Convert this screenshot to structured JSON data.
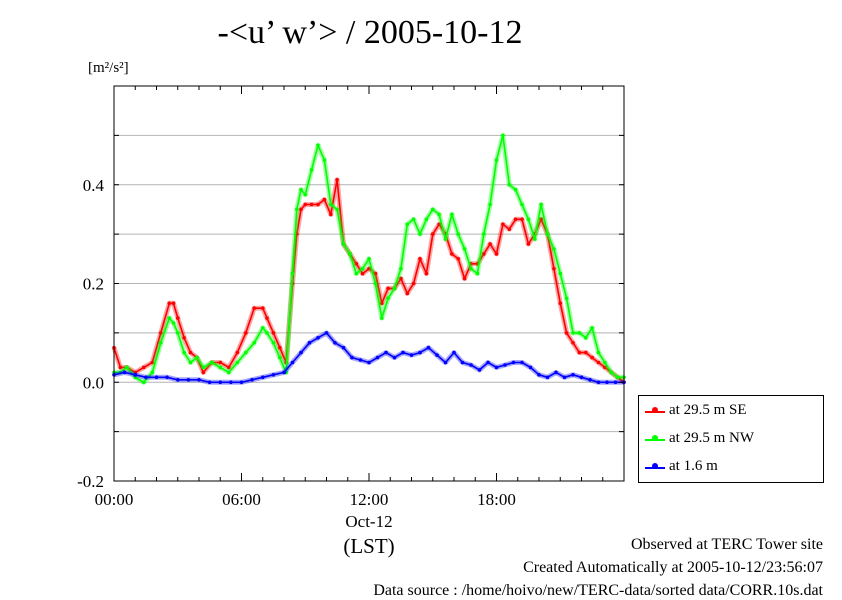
{
  "title": "-<u’ w’> / 2005-10-12",
  "unit_label": "[m²/s²]",
  "footer": {
    "line1": "Observed at TERC Tower site",
    "line2": "Created Automatically at 2005-10-12/23:56:07",
    "line3": "Data source : /home/hoivo/new/TERC-data/sorted  data/CORR.10s.dat"
  },
  "chart_data": {
    "type": "line",
    "title": "-<u’ w’> / 2005-10-12",
    "xlabel": "(LST)",
    "ylabel": "[m²/s²]",
    "x_unit": "hours (LST)",
    "xlim": [
      0,
      24
    ],
    "ylim": [
      -0.2,
      0.6
    ],
    "xticks": [
      {
        "value": 0,
        "label": "00:00"
      },
      {
        "value": 6,
        "label": "06:00"
      },
      {
        "value": 12,
        "label": "12:00"
      },
      {
        "value": 18,
        "label": "18:00"
      }
    ],
    "x_date_label": "Oct-12",
    "yticks": [
      {
        "value": -0.2,
        "label": "-0.2"
      },
      {
        "value": 0.0,
        "label": "0.0"
      },
      {
        "value": 0.2,
        "label": "0.2"
      },
      {
        "value": 0.4,
        "label": "0.4"
      }
    ],
    "grid": true,
    "legend_position": "right-bottom",
    "series": [
      {
        "name": "at 29.5 m SE",
        "color": "#ff0000",
        "x": [
          0.0,
          0.3,
          0.6,
          1.0,
          1.4,
          1.8,
          2.2,
          2.6,
          2.8,
          3.0,
          3.3,
          3.6,
          3.9,
          4.2,
          4.6,
          5.0,
          5.4,
          5.8,
          6.2,
          6.6,
          7.0,
          7.2,
          7.5,
          7.8,
          8.1,
          8.4,
          8.6,
          8.8,
          9.0,
          9.3,
          9.6,
          9.9,
          10.2,
          10.5,
          10.8,
          11.1,
          11.4,
          11.7,
          12.0,
          12.3,
          12.6,
          12.9,
          13.2,
          13.5,
          13.8,
          14.1,
          14.4,
          14.7,
          15.0,
          15.3,
          15.6,
          15.9,
          16.2,
          16.5,
          16.8,
          17.1,
          17.4,
          17.7,
          18.0,
          18.3,
          18.6,
          18.9,
          19.2,
          19.5,
          19.8,
          20.1,
          20.4,
          20.7,
          21.0,
          21.3,
          21.6,
          21.9,
          22.2,
          22.5,
          22.8,
          23.1,
          23.4,
          23.7,
          24.0
        ],
        "y": [
          0.07,
          0.03,
          0.03,
          0.02,
          0.03,
          0.04,
          0.1,
          0.16,
          0.16,
          0.13,
          0.09,
          0.06,
          0.05,
          0.02,
          0.04,
          0.04,
          0.03,
          0.06,
          0.1,
          0.15,
          0.15,
          0.13,
          0.1,
          0.07,
          0.04,
          0.2,
          0.3,
          0.35,
          0.36,
          0.36,
          0.36,
          0.37,
          0.34,
          0.41,
          0.28,
          0.26,
          0.24,
          0.22,
          0.23,
          0.22,
          0.16,
          0.19,
          0.19,
          0.21,
          0.18,
          0.2,
          0.25,
          0.22,
          0.3,
          0.32,
          0.3,
          0.26,
          0.25,
          0.21,
          0.24,
          0.24,
          0.26,
          0.28,
          0.26,
          0.32,
          0.31,
          0.33,
          0.33,
          0.28,
          0.3,
          0.33,
          0.3,
          0.23,
          0.16,
          0.1,
          0.08,
          0.06,
          0.06,
          0.05,
          0.04,
          0.03,
          0.02,
          0.01,
          0.0
        ]
      },
      {
        "name": "at 29.5 m NW",
        "color": "#00ff00",
        "x": [
          0.0,
          0.3,
          0.6,
          1.0,
          1.4,
          1.8,
          2.2,
          2.6,
          2.8,
          3.0,
          3.3,
          3.6,
          3.9,
          4.2,
          4.6,
          5.0,
          5.4,
          5.8,
          6.2,
          6.6,
          7.0,
          7.2,
          7.5,
          7.8,
          8.1,
          8.4,
          8.6,
          8.8,
          9.0,
          9.3,
          9.6,
          9.9,
          10.2,
          10.5,
          10.8,
          11.1,
          11.4,
          11.7,
          12.0,
          12.3,
          12.6,
          12.9,
          13.2,
          13.5,
          13.8,
          14.1,
          14.4,
          14.7,
          15.0,
          15.3,
          15.6,
          15.9,
          16.2,
          16.5,
          16.8,
          17.1,
          17.4,
          17.7,
          18.0,
          18.3,
          18.6,
          18.9,
          19.2,
          19.5,
          19.8,
          20.1,
          20.4,
          20.7,
          21.0,
          21.3,
          21.6,
          21.9,
          22.2,
          22.5,
          22.8,
          23.1,
          23.4,
          23.7,
          24.0
        ],
        "y": [
          0.02,
          0.02,
          0.03,
          0.01,
          0.0,
          0.02,
          0.08,
          0.13,
          0.12,
          0.1,
          0.06,
          0.04,
          0.05,
          0.03,
          0.04,
          0.03,
          0.02,
          0.04,
          0.06,
          0.08,
          0.11,
          0.1,
          0.08,
          0.05,
          0.02,
          0.22,
          0.35,
          0.39,
          0.38,
          0.43,
          0.48,
          0.45,
          0.36,
          0.35,
          0.28,
          0.26,
          0.22,
          0.23,
          0.25,
          0.2,
          0.13,
          0.17,
          0.19,
          0.23,
          0.32,
          0.33,
          0.3,
          0.33,
          0.35,
          0.34,
          0.29,
          0.34,
          0.3,
          0.27,
          0.23,
          0.22,
          0.3,
          0.36,
          0.45,
          0.5,
          0.4,
          0.39,
          0.36,
          0.33,
          0.29,
          0.36,
          0.3,
          0.27,
          0.22,
          0.17,
          0.1,
          0.1,
          0.09,
          0.11,
          0.06,
          0.04,
          0.02,
          0.01,
          0.01
        ]
      },
      {
        "name": "at 1.6 m",
        "color": "#0000ff",
        "x": [
          0.0,
          0.5,
          1.0,
          1.5,
          2.0,
          2.5,
          3.0,
          3.5,
          4.0,
          4.5,
          5.0,
          5.5,
          6.0,
          6.5,
          7.0,
          7.5,
          8.0,
          8.4,
          8.8,
          9.2,
          9.6,
          10.0,
          10.4,
          10.8,
          11.2,
          11.6,
          12.0,
          12.4,
          12.8,
          13.2,
          13.6,
          14.0,
          14.4,
          14.8,
          15.2,
          15.6,
          16.0,
          16.4,
          16.8,
          17.2,
          17.6,
          18.0,
          18.4,
          18.8,
          19.2,
          19.6,
          20.0,
          20.4,
          20.8,
          21.2,
          21.6,
          22.0,
          22.4,
          22.8,
          23.2,
          23.6,
          24.0
        ],
        "y": [
          0.015,
          0.02,
          0.015,
          0.01,
          0.01,
          0.01,
          0.005,
          0.005,
          0.005,
          0.0,
          0.0,
          0.0,
          0.0,
          0.005,
          0.01,
          0.015,
          0.02,
          0.04,
          0.06,
          0.08,
          0.09,
          0.1,
          0.08,
          0.07,
          0.05,
          0.045,
          0.04,
          0.05,
          0.06,
          0.05,
          0.06,
          0.055,
          0.06,
          0.07,
          0.055,
          0.04,
          0.06,
          0.04,
          0.035,
          0.025,
          0.04,
          0.03,
          0.035,
          0.04,
          0.04,
          0.03,
          0.015,
          0.01,
          0.02,
          0.01,
          0.015,
          0.01,
          0.005,
          0.0,
          0.0,
          0.0,
          0.0
        ]
      }
    ]
  }
}
